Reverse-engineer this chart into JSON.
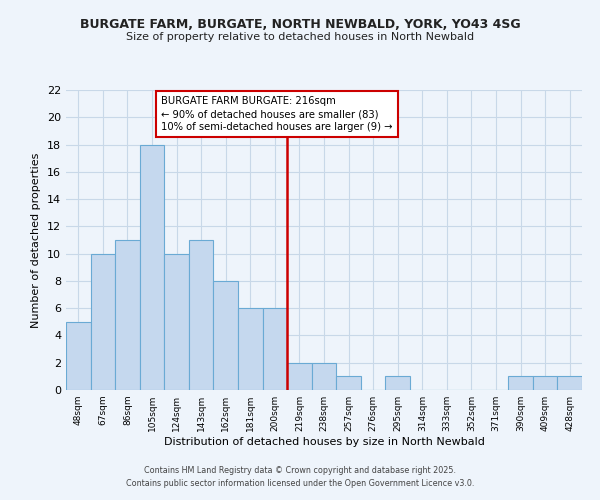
{
  "title1": "BURGATE FARM, BURGATE, NORTH NEWBALD, YORK, YO43 4SG",
  "title2": "Size of property relative to detached houses in North Newbald",
  "bar_labels": [
    "48sqm",
    "67sqm",
    "86sqm",
    "105sqm",
    "124sqm",
    "143sqm",
    "162sqm",
    "181sqm",
    "200sqm",
    "219sqm",
    "238sqm",
    "257sqm",
    "276sqm",
    "295sqm",
    "314sqm",
    "333sqm",
    "352sqm",
    "371sqm",
    "390sqm",
    "409sqm",
    "428sqm"
  ],
  "bar_values": [
    5,
    10,
    11,
    18,
    10,
    11,
    8,
    6,
    6,
    2,
    2,
    1,
    0,
    1,
    0,
    0,
    0,
    0,
    1,
    1,
    1
  ],
  "bar_color": "#c5d8ee",
  "bar_edge_color": "#6aaad4",
  "grid_color": "#c8d8e8",
  "bg_color": "#eef4fb",
  "vline_color": "#cc0000",
  "annotation_text": "BURGATE FARM BURGATE: 216sqm\n← 90% of detached houses are smaller (83)\n10% of semi-detached houses are larger (9) →",
  "annotation_box_edge": "#cc0000",
  "xlabel": "Distribution of detached houses by size in North Newbald",
  "ylabel": "Number of detached properties",
  "ylim": [
    0,
    22
  ],
  "yticks": [
    0,
    2,
    4,
    6,
    8,
    10,
    12,
    14,
    16,
    18,
    20,
    22
  ],
  "footer1": "Contains HM Land Registry data © Crown copyright and database right 2025.",
  "footer2": "Contains public sector information licensed under the Open Government Licence v3.0."
}
